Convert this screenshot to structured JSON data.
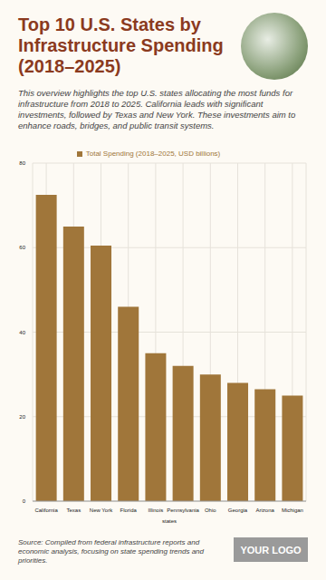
{
  "chart_data": {
    "type": "bar",
    "title": "Top 10 U.S. States by Infrastructure Spending (2018–2025)",
    "subtitle": "This overview highlights the top U.S. states allocating the most funds for infrastructure from 2018 to 2025. California leads with significant investments, followed by Texas and New York. These investments aim to enhance roads, bridges, and public transit systems.",
    "categories": [
      "California",
      "Texas",
      "New York",
      "Florida",
      "Illinois",
      "Pennsylvania",
      "Ohio",
      "Georgia",
      "Arizona",
      "Michigan"
    ],
    "series": [
      {
        "name": "Total Spending (2018–2025, USD billions)",
        "color": "#a0763a",
        "values": [
          72.5,
          65,
          60.5,
          46,
          35,
          32,
          30,
          28,
          26.5,
          25
        ]
      }
    ],
    "x_label": "states",
    "ylim": [
      0,
      80
    ],
    "yticks": [
      0,
      20,
      40,
      60,
      80
    ],
    "grid": true,
    "source": "Source: Compiled from federal infrastructure reports and economic analysis, focusing on state spending trends and priorities.",
    "logo": "YOUR LOGO"
  }
}
